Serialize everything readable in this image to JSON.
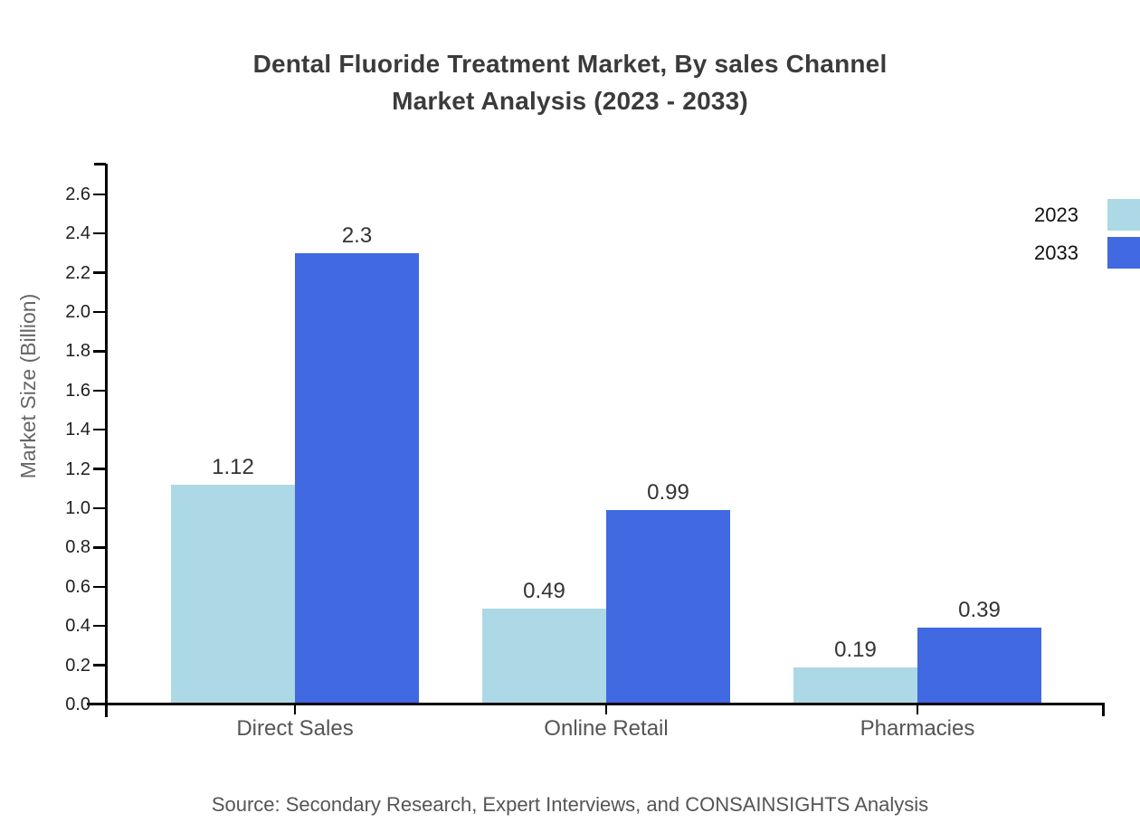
{
  "title": {
    "line1": "Dental Fluoride Treatment Market, By sales Channel",
    "line2": "Market Analysis (2023 - 2033)"
  },
  "source": "Source: Secondary Research, Expert Interviews, and CONSAINSIGHTS Analysis",
  "chart_data": {
    "type": "bar",
    "title": "Dental Fluoride Treatment Market, By sales Channel Market Analysis (2023 - 2033)",
    "categories": [
      "Direct Sales",
      "Online Retail",
      "Pharmacies"
    ],
    "series": [
      {
        "name": "2023",
        "color": "#ADD8E6",
        "values": [
          1.12,
          0.49,
          0.19
        ]
      },
      {
        "name": "2033",
        "color": "#4169E1",
        "values": [
          2.3,
          0.99,
          0.39
        ]
      }
    ],
    "xlabel": "",
    "ylabel": "Market Size (Billion)",
    "ylim": [
      0,
      2.75
    ],
    "ytick_step": 0.2,
    "ytick_labels": [
      "0.0",
      "0.2",
      "0.4",
      "0.6",
      "0.8",
      "1.0",
      "1.2",
      "1.4",
      "1.6",
      "1.8",
      "2.0",
      "2.2",
      "2.4",
      "2.6"
    ],
    "grid": false,
    "value_labels": true,
    "legend_position": "top-right",
    "axis_color": "#000000",
    "background_color": "#ffffff"
  }
}
